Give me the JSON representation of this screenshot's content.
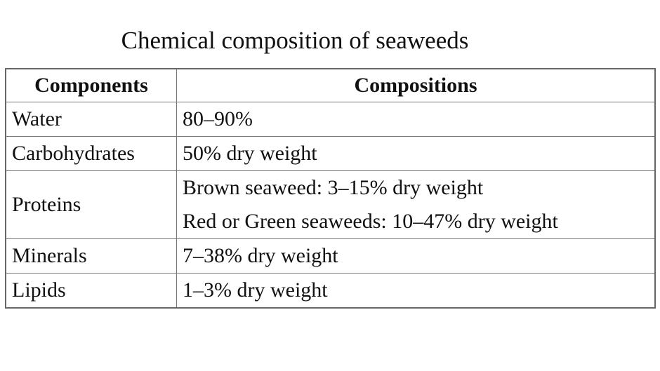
{
  "title": "Chemical composition of seaweeds",
  "table": {
    "header": [
      "Components",
      "Compositions"
    ],
    "rows": [
      {
        "component": "Water",
        "composition": [
          "80–90%"
        ]
      },
      {
        "component": "Carbohydrates",
        "composition": [
          "50% dry weight"
        ]
      },
      {
        "component": "Proteins",
        "composition": [
          "Brown seaweed: 3–15% dry weight",
          "Red or Green seaweeds: 10–47% dry weight"
        ]
      },
      {
        "component": "Minerals",
        "composition": [
          "7–38% dry weight"
        ]
      },
      {
        "component": "Lipids",
        "composition": [
          "1–3% dry weight"
        ]
      }
    ]
  }
}
